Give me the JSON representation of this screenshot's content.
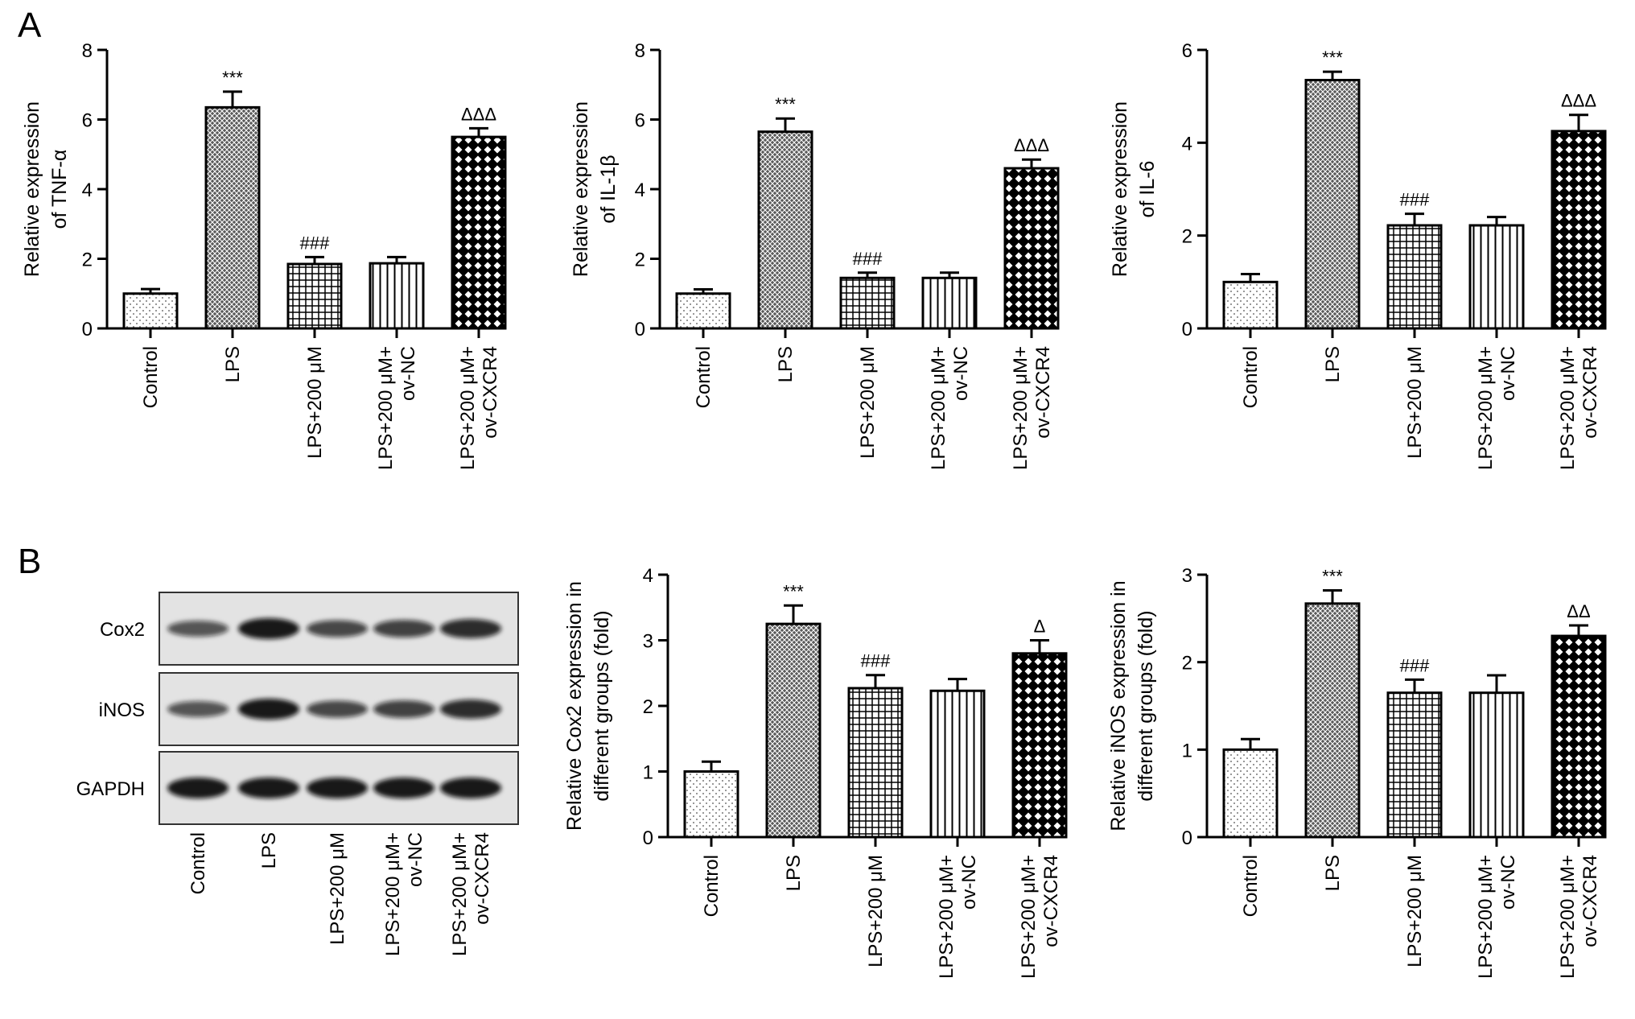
{
  "panels": {
    "a": "A",
    "b": "B"
  },
  "colors": {
    "ink": "#000000",
    "blot_bg": "#e3e3e3",
    "band": "#111111"
  },
  "categories": [
    "Control",
    "LPS",
    "LPS+200 μM",
    [
      "LPS+200 μM+",
      "ov-NC"
    ],
    [
      "LPS+200 μM+",
      "ov-CXCR4"
    ]
  ],
  "patterns": [
    "dots",
    "fine-crosshatch",
    "grid",
    "vertical-lines",
    "checker"
  ],
  "blot": {
    "rows": [
      "Cox2",
      "iNOS",
      "GAPDH"
    ],
    "lanes": [
      "Control",
      "LPS",
      "LPS+200 μM",
      [
        "LPS+200 μM+",
        "ov-NC"
      ],
      [
        "LPS+200 μM+",
        "ov-CXCR4"
      ]
    ],
    "band_intensity": [
      [
        0.55,
        1.0,
        0.65,
        0.7,
        0.85
      ],
      [
        0.55,
        1.0,
        0.65,
        0.7,
        0.85
      ],
      [
        1.0,
        1.0,
        1.0,
        1.0,
        1.0
      ]
    ]
  },
  "chart_data": [
    {
      "type": "bar",
      "panel": "A",
      "categories": [
        "Control",
        "LPS",
        "LPS+200 μM",
        "LPS+200 μM+ ov-NC",
        "LPS+200 μM+ ov-CXCR4"
      ],
      "values": [
        1.0,
        6.35,
        1.85,
        1.87,
        5.5
      ],
      "errors": [
        0.13,
        0.45,
        0.2,
        0.18,
        0.25
      ],
      "annotations": [
        "",
        "***",
        "###",
        "",
        "ΔΔΔ"
      ],
      "ylabel": [
        "Relative expression",
        "of TNF-α"
      ],
      "ylim": [
        0,
        8
      ],
      "yticks": [
        0,
        2,
        4,
        6,
        8
      ],
      "grid": false
    },
    {
      "type": "bar",
      "panel": "A",
      "categories": [
        "Control",
        "LPS",
        "LPS+200 μM",
        "LPS+200 μM+ ov-NC",
        "LPS+200 μM+ ov-CXCR4"
      ],
      "values": [
        1.0,
        5.65,
        1.45,
        1.45,
        4.6
      ],
      "errors": [
        0.12,
        0.38,
        0.15,
        0.15,
        0.25
      ],
      "annotations": [
        "",
        "***",
        "###",
        "",
        "ΔΔΔ"
      ],
      "ylabel": [
        "Relative expression",
        "of IL-1β"
      ],
      "ylim": [
        0,
        8
      ],
      "yticks": [
        0,
        2,
        4,
        6,
        8
      ],
      "grid": false
    },
    {
      "type": "bar",
      "panel": "A",
      "categories": [
        "Control",
        "LPS",
        "LPS+200 μM",
        "LPS+200 μM+ ov-NC",
        "LPS+200 μM+ ov-CXCR4"
      ],
      "values": [
        1.0,
        5.35,
        2.22,
        2.22,
        4.25
      ],
      "errors": [
        0.17,
        0.18,
        0.25,
        0.18,
        0.35
      ],
      "annotations": [
        "",
        "***",
        "###",
        "",
        "ΔΔΔ"
      ],
      "ylabel": [
        "Relative expression",
        "of IL-6"
      ],
      "ylim": [
        0,
        6
      ],
      "yticks": [
        0,
        2,
        4,
        6
      ],
      "grid": false
    },
    {
      "type": "bar",
      "panel": "B",
      "categories": [
        "Control",
        "LPS",
        "LPS+200 μM",
        "LPS+200 μM+ ov-NC",
        "LPS+200 μM+ ov-CXCR4"
      ],
      "values": [
        1.0,
        3.25,
        2.27,
        2.23,
        2.8
      ],
      "errors": [
        0.15,
        0.28,
        0.2,
        0.18,
        0.2
      ],
      "annotations": [
        "",
        "***",
        "###",
        "",
        "Δ"
      ],
      "ylabel": [
        "Relative Cox2 expression in",
        "different groups (fold)"
      ],
      "ylim": [
        0,
        4
      ],
      "yticks": [
        0,
        1,
        2,
        3,
        4
      ],
      "grid": false
    },
    {
      "type": "bar",
      "panel": "B",
      "categories": [
        "Control",
        "LPS",
        "LPS+200 μM",
        "LPS+200 μM+ ov-NC",
        "LPS+200 μM+ ov-CXCR4"
      ],
      "values": [
        1.0,
        2.67,
        1.65,
        1.65,
        2.3
      ],
      "errors": [
        0.12,
        0.15,
        0.15,
        0.2,
        0.12
      ],
      "annotations": [
        "",
        "***",
        "###",
        "",
        "ΔΔ"
      ],
      "ylabel": [
        "Relative iNOS expression in",
        "different groups (fold)"
      ],
      "ylim": [
        0,
        3
      ],
      "yticks": [
        0,
        1,
        2,
        3
      ],
      "grid": false
    }
  ]
}
